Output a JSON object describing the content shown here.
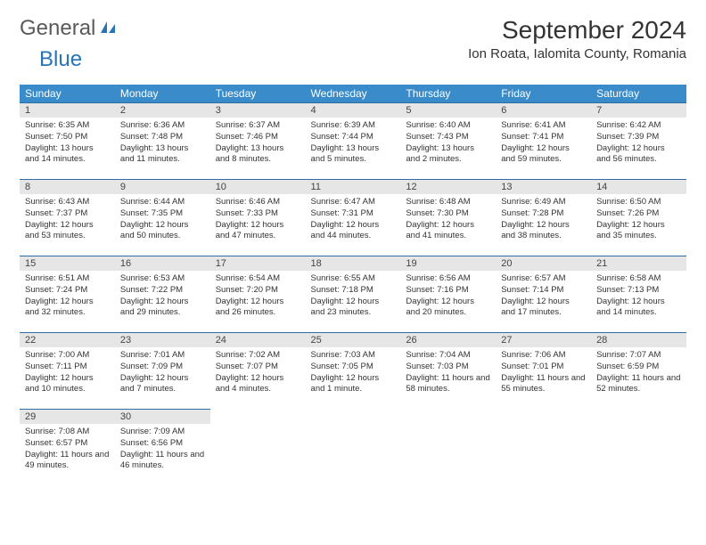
{
  "logo": {
    "general": "General",
    "blue": "Blue"
  },
  "title": "September 2024",
  "location": "Ion Roata, Ialomita County, Romania",
  "colors": {
    "header_bg": "#3a8bc9",
    "header_text": "#ffffff",
    "daynum_bg": "#e6e6e6",
    "border": "#2e6da4",
    "logo_gray": "#5a5a5a",
    "logo_blue": "#2874b8"
  },
  "weekdays": [
    "Sunday",
    "Monday",
    "Tuesday",
    "Wednesday",
    "Thursday",
    "Friday",
    "Saturday"
  ],
  "days": [
    {
      "n": "1",
      "sr": "6:35 AM",
      "ss": "7:50 PM",
      "dl": "13 hours and 14 minutes."
    },
    {
      "n": "2",
      "sr": "6:36 AM",
      "ss": "7:48 PM",
      "dl": "13 hours and 11 minutes."
    },
    {
      "n": "3",
      "sr": "6:37 AM",
      "ss": "7:46 PM",
      "dl": "13 hours and 8 minutes."
    },
    {
      "n": "4",
      "sr": "6:39 AM",
      "ss": "7:44 PM",
      "dl": "13 hours and 5 minutes."
    },
    {
      "n": "5",
      "sr": "6:40 AM",
      "ss": "7:43 PM",
      "dl": "13 hours and 2 minutes."
    },
    {
      "n": "6",
      "sr": "6:41 AM",
      "ss": "7:41 PM",
      "dl": "12 hours and 59 minutes."
    },
    {
      "n": "7",
      "sr": "6:42 AM",
      "ss": "7:39 PM",
      "dl": "12 hours and 56 minutes."
    },
    {
      "n": "8",
      "sr": "6:43 AM",
      "ss": "7:37 PM",
      "dl": "12 hours and 53 minutes."
    },
    {
      "n": "9",
      "sr": "6:44 AM",
      "ss": "7:35 PM",
      "dl": "12 hours and 50 minutes."
    },
    {
      "n": "10",
      "sr": "6:46 AM",
      "ss": "7:33 PM",
      "dl": "12 hours and 47 minutes."
    },
    {
      "n": "11",
      "sr": "6:47 AM",
      "ss": "7:31 PM",
      "dl": "12 hours and 44 minutes."
    },
    {
      "n": "12",
      "sr": "6:48 AM",
      "ss": "7:30 PM",
      "dl": "12 hours and 41 minutes."
    },
    {
      "n": "13",
      "sr": "6:49 AM",
      "ss": "7:28 PM",
      "dl": "12 hours and 38 minutes."
    },
    {
      "n": "14",
      "sr": "6:50 AM",
      "ss": "7:26 PM",
      "dl": "12 hours and 35 minutes."
    },
    {
      "n": "15",
      "sr": "6:51 AM",
      "ss": "7:24 PM",
      "dl": "12 hours and 32 minutes."
    },
    {
      "n": "16",
      "sr": "6:53 AM",
      "ss": "7:22 PM",
      "dl": "12 hours and 29 minutes."
    },
    {
      "n": "17",
      "sr": "6:54 AM",
      "ss": "7:20 PM",
      "dl": "12 hours and 26 minutes."
    },
    {
      "n": "18",
      "sr": "6:55 AM",
      "ss": "7:18 PM",
      "dl": "12 hours and 23 minutes."
    },
    {
      "n": "19",
      "sr": "6:56 AM",
      "ss": "7:16 PM",
      "dl": "12 hours and 20 minutes."
    },
    {
      "n": "20",
      "sr": "6:57 AM",
      "ss": "7:14 PM",
      "dl": "12 hours and 17 minutes."
    },
    {
      "n": "21",
      "sr": "6:58 AM",
      "ss": "7:13 PM",
      "dl": "12 hours and 14 minutes."
    },
    {
      "n": "22",
      "sr": "7:00 AM",
      "ss": "7:11 PM",
      "dl": "12 hours and 10 minutes."
    },
    {
      "n": "23",
      "sr": "7:01 AM",
      "ss": "7:09 PM",
      "dl": "12 hours and 7 minutes."
    },
    {
      "n": "24",
      "sr": "7:02 AM",
      "ss": "7:07 PM",
      "dl": "12 hours and 4 minutes."
    },
    {
      "n": "25",
      "sr": "7:03 AM",
      "ss": "7:05 PM",
      "dl": "12 hours and 1 minute."
    },
    {
      "n": "26",
      "sr": "7:04 AM",
      "ss": "7:03 PM",
      "dl": "11 hours and 58 minutes."
    },
    {
      "n": "27",
      "sr": "7:06 AM",
      "ss": "7:01 PM",
      "dl": "11 hours and 55 minutes."
    },
    {
      "n": "28",
      "sr": "7:07 AM",
      "ss": "6:59 PM",
      "dl": "11 hours and 52 minutes."
    },
    {
      "n": "29",
      "sr": "7:08 AM",
      "ss": "6:57 PM",
      "dl": "11 hours and 49 minutes."
    },
    {
      "n": "30",
      "sr": "7:09 AM",
      "ss": "6:56 PM",
      "dl": "11 hours and 46 minutes."
    }
  ],
  "labels": {
    "sunrise": "Sunrise:",
    "sunset": "Sunset:",
    "daylight": "Daylight:"
  }
}
